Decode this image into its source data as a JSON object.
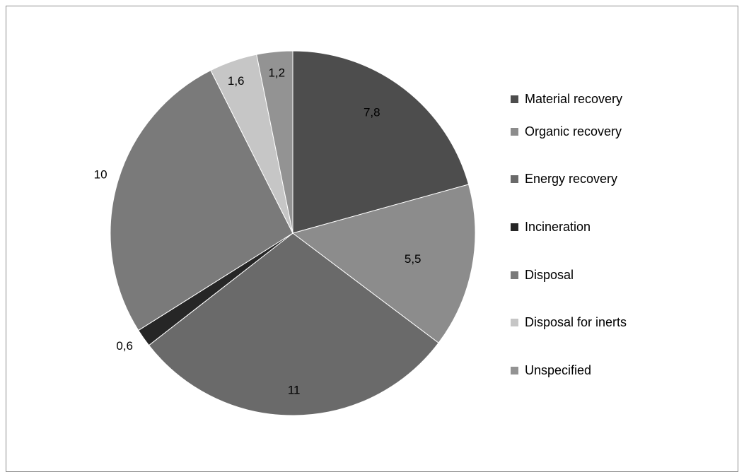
{
  "chart_data": {
    "type": "pie",
    "title": "",
    "start_angle_deg": 0,
    "direction": "clockwise",
    "legend_position": "right",
    "slices": [
      {
        "label": "Material recovery",
        "value": 7.8,
        "value_label": "7,8",
        "color": "#4d4d4d"
      },
      {
        "label": "Organic recovery",
        "value": 5.5,
        "value_label": "5,5",
        "color": "#8c8c8c"
      },
      {
        "label": "Energy recovery",
        "value": 11,
        "value_label": "11",
        "color": "#6a6a6a"
      },
      {
        "label": "Incineration",
        "value": 0.6,
        "value_label": "0,6",
        "color": "#262626"
      },
      {
        "label": "Disposal",
        "value": 10,
        "value_label": "10",
        "color": "#7a7a7a"
      },
      {
        "label": "Disposal for inerts",
        "value": 1.6,
        "value_label": "1,6",
        "color": "#c6c6c6"
      },
      {
        "label": "Unspecified",
        "value": 1.2,
        "value_label": "1,2",
        "color": "#939393"
      }
    ]
  }
}
